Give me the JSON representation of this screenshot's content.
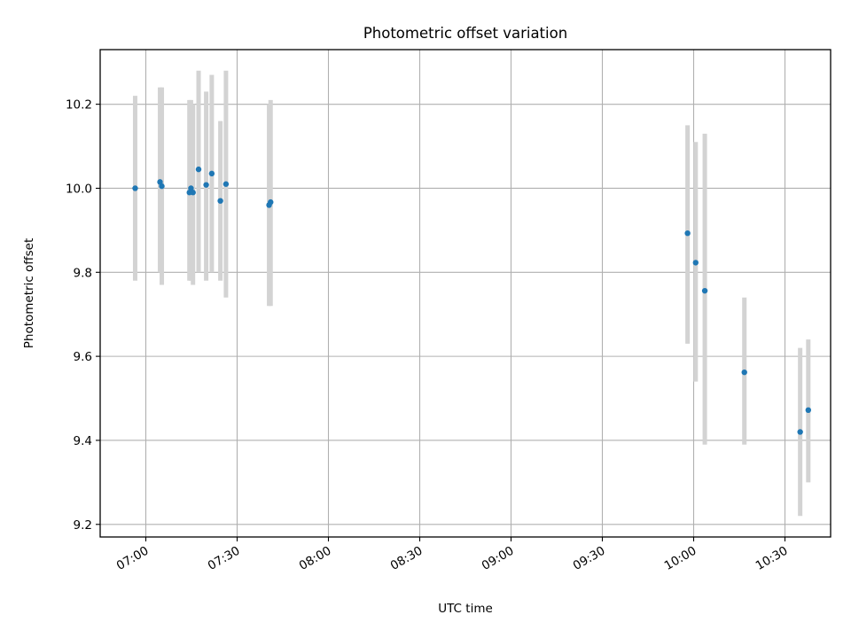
{
  "chart_data": {
    "type": "scatter",
    "title": "Photometric offset variation",
    "xlabel": "UTC time",
    "ylabel": "Photometric offset",
    "x_unit": "hh:mm (UTC)",
    "xlim": [
      "06:45",
      "10:45"
    ],
    "ylim": [
      9.17,
      10.33
    ],
    "x_ticks": [
      "07:00",
      "07:30",
      "08:00",
      "08:30",
      "09:00",
      "09:30",
      "10:00",
      "10:30"
    ],
    "y_ticks": [
      9.2,
      9.4,
      9.6,
      9.8,
      10.0,
      10.2
    ],
    "y_tick_labels": [
      "9.2",
      "9.4",
      "9.6",
      "9.8",
      "10.0",
      "10.2"
    ],
    "grid": true,
    "marker_color": "#1f77b4",
    "errorbar_color": "#d3d3d3",
    "points": [
      {
        "x": "06:56:30",
        "y": 10.0,
        "y_low": 9.78,
        "y_high": 10.22
      },
      {
        "x": "07:04:40",
        "y": 10.015,
        "y_low": 9.8,
        "y_high": 10.24
      },
      {
        "x": "07:05:15",
        "y": 10.005,
        "y_low": 9.77,
        "y_high": 10.24
      },
      {
        "x": "07:14:20",
        "y": 9.99,
        "y_low": 9.78,
        "y_high": 10.21
      },
      {
        "x": "07:14:50",
        "y": 10.0,
        "y_low": 9.78,
        "y_high": 10.21
      },
      {
        "x": "07:15:30",
        "y": 9.99,
        "y_low": 9.77,
        "y_high": 10.2
      },
      {
        "x": "07:17:20",
        "y": 10.045,
        "y_low": 9.8,
        "y_high": 10.28
      },
      {
        "x": "07:19:50",
        "y": 10.008,
        "y_low": 9.78,
        "y_high": 10.23
      },
      {
        "x": "07:21:40",
        "y": 10.035,
        "y_low": 9.8,
        "y_high": 10.27
      },
      {
        "x": "07:24:30",
        "y": 9.97,
        "y_low": 9.78,
        "y_high": 10.16
      },
      {
        "x": "07:26:20",
        "y": 10.01,
        "y_low": 9.74,
        "y_high": 10.28
      },
      {
        "x": "07:40:30",
        "y": 9.96,
        "y_low": 9.72,
        "y_high": 10.2
      },
      {
        "x": "07:41:00",
        "y": 9.967,
        "y_low": 9.72,
        "y_high": 10.21
      },
      {
        "x": "09:58:00",
        "y": 9.893,
        "y_low": 9.63,
        "y_high": 10.15
      },
      {
        "x": "10:00:40",
        "y": 9.823,
        "y_low": 9.54,
        "y_high": 10.11
      },
      {
        "x": "10:03:40",
        "y": 9.756,
        "y_low": 9.39,
        "y_high": 10.13
      },
      {
        "x": "10:16:40",
        "y": 9.562,
        "y_low": 9.39,
        "y_high": 9.74
      },
      {
        "x": "10:35:00",
        "y": 9.42,
        "y_low": 9.22,
        "y_high": 9.62
      },
      {
        "x": "10:37:40",
        "y": 9.472,
        "y_low": 9.3,
        "y_high": 9.64
      }
    ]
  }
}
